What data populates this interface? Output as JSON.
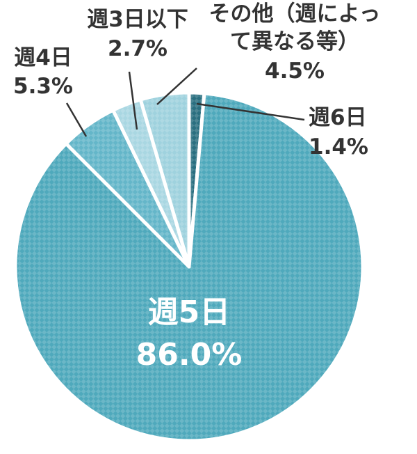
{
  "chart_data": {
    "type": "pie",
    "start_angle_deg": 0,
    "direction": "clockwise",
    "slices": [
      {
        "label": "週6日",
        "value": 1.4,
        "value_label": "1.4%",
        "color": "#2a6f80"
      },
      {
        "label": "週5日",
        "value": 86.0,
        "value_label": "86.0%",
        "color": "#4fa9bc"
      },
      {
        "label": "週4日",
        "value": 5.3,
        "value_label": "5.3%",
        "color": "#64b6c9"
      },
      {
        "label": "週3日以下",
        "value": 2.7,
        "value_label": "2.7%",
        "color": "#a9d7e2"
      },
      {
        "label": "その他（週によって異なる等）",
        "label_lines": [
          "その他（週によっ",
          "て異なる等）"
        ],
        "value": 4.5,
        "value_label": "4.5%",
        "color": "#9fd2de"
      }
    ]
  }
}
